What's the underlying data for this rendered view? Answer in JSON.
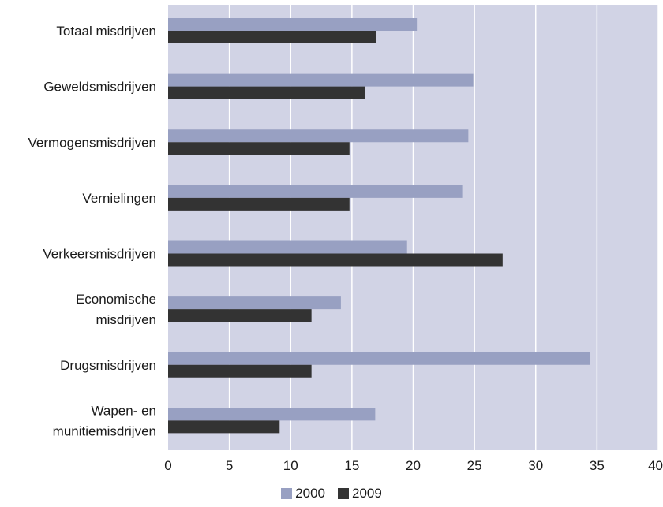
{
  "chart_data": {
    "type": "bar",
    "orientation": "horizontal",
    "categories": [
      [
        "Totaal misdrijven"
      ],
      [
        "Geweldsmisdrijven"
      ],
      [
        "Vermogensmisdrijven"
      ],
      [
        "Vernielingen"
      ],
      [
        "Verkeersmisdrijven"
      ],
      [
        "Economische",
        "misdrijven"
      ],
      [
        "Drugsmisdrijven"
      ],
      [
        "Wapen- en",
        "munitiemisdrijven"
      ]
    ],
    "series": [
      {
        "name": "2000",
        "color": "#98a0c2",
        "values": [
          20.3,
          24.9,
          24.5,
          24.0,
          19.5,
          14.1,
          34.4,
          16.9
        ]
      },
      {
        "name": "2009",
        "color": "#333333",
        "values": [
          17.0,
          16.1,
          14.8,
          14.8,
          27.3,
          11.7,
          11.7,
          9.1
        ]
      }
    ],
    "xlim": [
      0,
      40
    ],
    "xticks": [
      0,
      5,
      10,
      15,
      20,
      25,
      30,
      35,
      40
    ],
    "grid": true,
    "legend_position": "bottom-center",
    "plot_background": "#d1d3e5",
    "grid_color": "#ffffff"
  }
}
